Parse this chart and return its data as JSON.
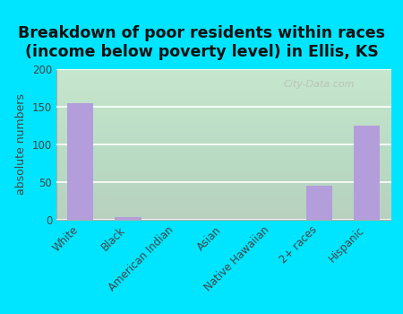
{
  "categories": [
    "White",
    "Black",
    "American Indian",
    "Asian",
    "Native Hawaiian",
    "2+ races",
    "Hispanic"
  ],
  "values": [
    155,
    3,
    0,
    0,
    0,
    45,
    125
  ],
  "bar_color": "#b39ddb",
  "title_line1": "Breakdown of poor residents within races",
  "title_line2": "(income below poverty level) in Ellis, KS",
  "ylabel": "absolute numbers",
  "ylim": [
    0,
    200
  ],
  "yticks": [
    0,
    50,
    100,
    150,
    200
  ],
  "outer_bg": "#00e5ff",
  "watermark": "City-Data.com",
  "title_fontsize": 12.5,
  "ylabel_fontsize": 9,
  "tick_fontsize": 8.5
}
